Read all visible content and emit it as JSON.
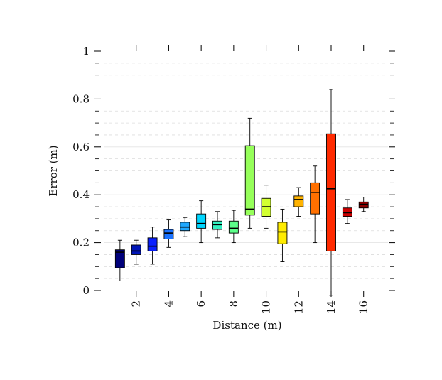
{
  "chart_data": {
    "type": "box",
    "title": "",
    "xlabel": "Distance (m)",
    "ylabel": "Error (m)",
    "xlim": [
      0,
      17.5
    ],
    "ylim": [
      0,
      1
    ],
    "x_ticks": [
      2,
      4,
      6,
      8,
      10,
      12,
      14,
      16
    ],
    "x_tick_labels": [
      "2",
      "4",
      "6",
      "8",
      "10",
      "12",
      "14",
      "16"
    ],
    "y_ticks": [
      0,
      0.2,
      0.4,
      0.6,
      0.8,
      1
    ],
    "y_tick_labels": [
      "0",
      "0.2",
      "0.4",
      "0.6",
      "0.8",
      "1"
    ],
    "minor_grid_step": 0.05,
    "grid": true,
    "boxes": [
      {
        "x": 1,
        "min": 0.04,
        "q1": 0.095,
        "median": 0.16,
        "q3": 0.17,
        "max": 0.21,
        "color": "#00007a"
      },
      {
        "x": 2,
        "min": 0.11,
        "q1": 0.15,
        "median": 0.165,
        "q3": 0.19,
        "max": 0.21,
        "color": "#0015b8"
      },
      {
        "x": 3,
        "min": 0.11,
        "q1": 0.165,
        "median": 0.185,
        "q3": 0.22,
        "max": 0.265,
        "color": "#0a20ff"
      },
      {
        "x": 4,
        "min": 0.18,
        "q1": 0.215,
        "median": 0.24,
        "q3": 0.255,
        "max": 0.295,
        "color": "#1a72ff"
      },
      {
        "x": 5,
        "min": 0.225,
        "q1": 0.25,
        "median": 0.265,
        "q3": 0.285,
        "max": 0.305,
        "color": "#1fa8ff"
      },
      {
        "x": 6,
        "min": 0.2,
        "q1": 0.26,
        "median": 0.28,
        "q3": 0.32,
        "max": 0.375,
        "color": "#00d6ff"
      },
      {
        "x": 7,
        "min": 0.22,
        "q1": 0.255,
        "median": 0.275,
        "q3": 0.29,
        "max": 0.33,
        "color": "#33f0c0"
      },
      {
        "x": 8,
        "min": 0.2,
        "q1": 0.24,
        "median": 0.26,
        "q3": 0.29,
        "max": 0.335,
        "color": "#5cff8a"
      },
      {
        "x": 9,
        "min": 0.26,
        "q1": 0.315,
        "median": 0.34,
        "q3": 0.605,
        "max": 0.72,
        "color": "#96ff5a"
      },
      {
        "x": 10,
        "min": 0.26,
        "q1": 0.31,
        "median": 0.35,
        "q3": 0.385,
        "max": 0.44,
        "color": "#d2ff30"
      },
      {
        "x": 11,
        "min": 0.12,
        "q1": 0.195,
        "median": 0.245,
        "q3": 0.285,
        "max": 0.34,
        "color": "#ffec00"
      },
      {
        "x": 12,
        "min": 0.31,
        "q1": 0.35,
        "median": 0.38,
        "q3": 0.395,
        "max": 0.43,
        "color": "#ffb300"
      },
      {
        "x": 13,
        "min": 0.2,
        "q1": 0.32,
        "median": 0.41,
        "q3": 0.45,
        "max": 0.52,
        "color": "#ff7000"
      },
      {
        "x": 14,
        "min": -0.02,
        "q1": 0.165,
        "median": 0.425,
        "q3": 0.655,
        "max": 0.84,
        "color": "#ff2a00"
      },
      {
        "x": 15,
        "min": 0.28,
        "q1": 0.31,
        "median": 0.325,
        "q3": 0.345,
        "max": 0.38,
        "color": "#cc0000"
      },
      {
        "x": 16,
        "min": 0.33,
        "q1": 0.345,
        "median": 0.36,
        "q3": 0.37,
        "max": 0.39,
        "color": "#8a0000"
      }
    ]
  }
}
